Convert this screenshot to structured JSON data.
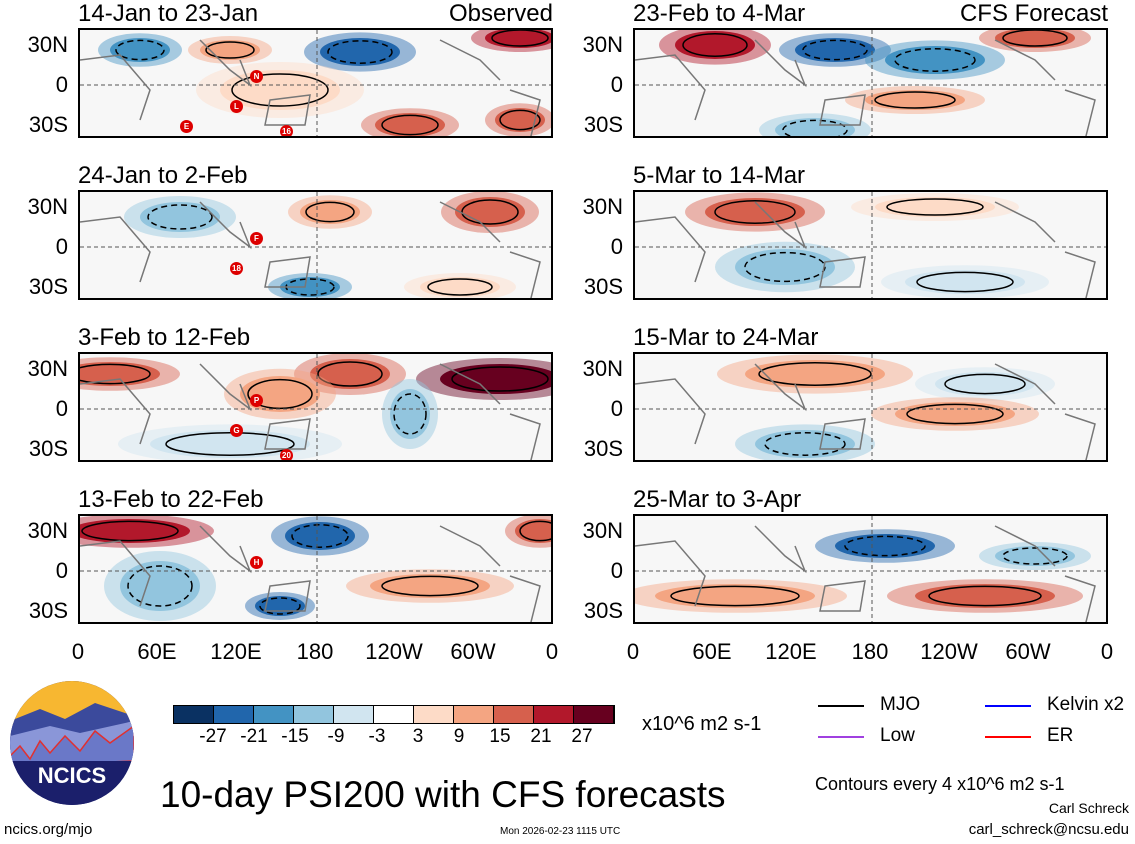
{
  "panels": [
    {
      "title": "14-Jan to 23-Jan",
      "label": "Observed",
      "storms": [
        "N",
        "L",
        "16",
        "E"
      ]
    },
    {
      "title": "24-Jan to 2-Feb",
      "storms": [
        "F",
        "18"
      ]
    },
    {
      "title": "3-Feb to 12-Feb",
      "storms": [
        "P",
        "G",
        "20"
      ]
    },
    {
      "title": "13-Feb to 22-Feb",
      "storms": [
        "H"
      ]
    },
    {
      "title": "23-Feb to 4-Mar",
      "label": "CFS Forecast"
    },
    {
      "title": "5-Mar to 14-Mar"
    },
    {
      "title": "15-Mar to 24-Mar"
    },
    {
      "title": "25-Mar to 3-Apr"
    }
  ],
  "lat_labels": [
    "30N",
    "0",
    "30S"
  ],
  "lon_labels": [
    "0",
    "60E",
    "120E",
    "180",
    "120W",
    "60W",
    "0"
  ],
  "colorbar": {
    "colors": [
      "#0a3162",
      "#2166ac",
      "#4393c3",
      "#92c5de",
      "#d1e5f0",
      "#ffffff",
      "#fddbc7",
      "#f4a582",
      "#d6604d",
      "#b2182b",
      "#67001f"
    ],
    "labels": [
      "-27",
      "-21",
      "-15",
      "-9",
      "-3",
      "3",
      "9",
      "15",
      "21",
      "27"
    ],
    "units": "x10^6 m2 s-1"
  },
  "legend": [
    {
      "label": "MJO",
      "color": "#000000"
    },
    {
      "label": "Kelvin x2",
      "color": "#0000ff"
    },
    {
      "label": "Low",
      "color": "#a040e0"
    },
    {
      "label": "ER",
      "color": "#ff0000"
    }
  ],
  "title": "10-day PSI200 with CFS forecasts",
  "contours": "Contours every 4 x10^6 m2 s-1",
  "author": "Carl Schreck",
  "email": "carl_schreck@ncsu.edu",
  "url": "ncics.org/mjo",
  "timestamp": "Mon 2026-02-23 1115 UTC",
  "logo": "NCICS"
}
